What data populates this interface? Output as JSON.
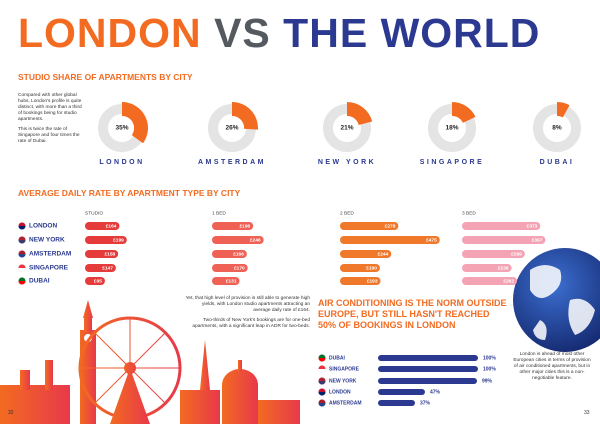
{
  "header": {
    "title": [
      "LONDON",
      "VS",
      "THE WORLD"
    ]
  },
  "chart_data": [
    {
      "type": "donut",
      "title": "STUDIO SHARE OF APARTMENTS BY CITY",
      "annotations": [
        "Compared with other global hubs, London's profile is quite distinct, with more than a third of bookings being for studio apartments.",
        "This is twice the rate of Singapore and four times the rate of Dubai."
      ],
      "categories": [
        "LONDON",
        "AMSTERDAM",
        "NEW YORK",
        "SINGAPORE",
        "DUBAI"
      ],
      "values": [
        35,
        26,
        21,
        18,
        8
      ],
      "value_labels": [
        "35%",
        "26%",
        "21%",
        "18%",
        "8%"
      ],
      "color": "#f26b21",
      "ring_color": "#e4e4e4"
    },
    {
      "type": "bar",
      "orientation": "horizontal",
      "title": "AVERAGE DAILY RATE BY APARTMENT TYPE BY CITY",
      "annotations": [
        "Yet, that high level of provision is still able to generate high yields, with London studio apartments attracting an average daily rate of £164.",
        "Two-thirds of New York's bookings are for one-bed apartments, with a significant leap in ADR for two-beds."
      ],
      "categories": [
        "LONDON",
        "NEW YORK",
        "AMSTERDAM",
        "SINGAPORE",
        "DUBAI"
      ],
      "series": [
        {
          "name": "STUDIO",
          "color": "#e63b3b",
          "values": [
            164,
            199,
            158,
            147,
            95
          ],
          "value_labels": [
            "£164",
            "£199",
            "£158",
            "£147",
            "£95"
          ]
        },
        {
          "name": "1 BED",
          "color": "#ef6155",
          "values": [
            196,
            246,
            166,
            170,
            131
          ],
          "value_labels": [
            "£196",
            "£246",
            "£166",
            "£170",
            "£131"
          ]
        },
        {
          "name": "2 BED",
          "color": "#f0782b",
          "values": [
            278,
            475,
            244,
            190,
            193
          ],
          "value_labels": [
            "£278",
            "£475",
            "£244",
            "£190",
            "£193"
          ]
        },
        {
          "name": "3 BED",
          "color": "#f4a3b4",
          "values": [
            373,
            397,
            299,
            236,
            262
          ],
          "value_labels": [
            "£373",
            "£397",
            "£299",
            "£236",
            "£262"
          ]
        }
      ]
    },
    {
      "type": "bar",
      "orientation": "horizontal",
      "title": "AIR CONDITIONING IS THE NORM OUTSIDE EUROPE, BUT STILL HASN'T REACHED 50% OF BOOKINGS IN LONDON",
      "annotations": [
        "London is ahead of most other European cities in terms of provision of air conditioned apartments, but in other major cities this is a non-negotiable feature."
      ],
      "categories": [
        "DUBAI",
        "SINGAPORE",
        "NEW YORK",
        "LONDON",
        "AMSTERDAM"
      ],
      "values": [
        100,
        100,
        99,
        47,
        37
      ],
      "value_labels": [
        "100%",
        "100%",
        "99%",
        "47%",
        "37%"
      ],
      "color": "#2b3990"
    }
  ],
  "page_numbers": [
    "32",
    "33"
  ]
}
